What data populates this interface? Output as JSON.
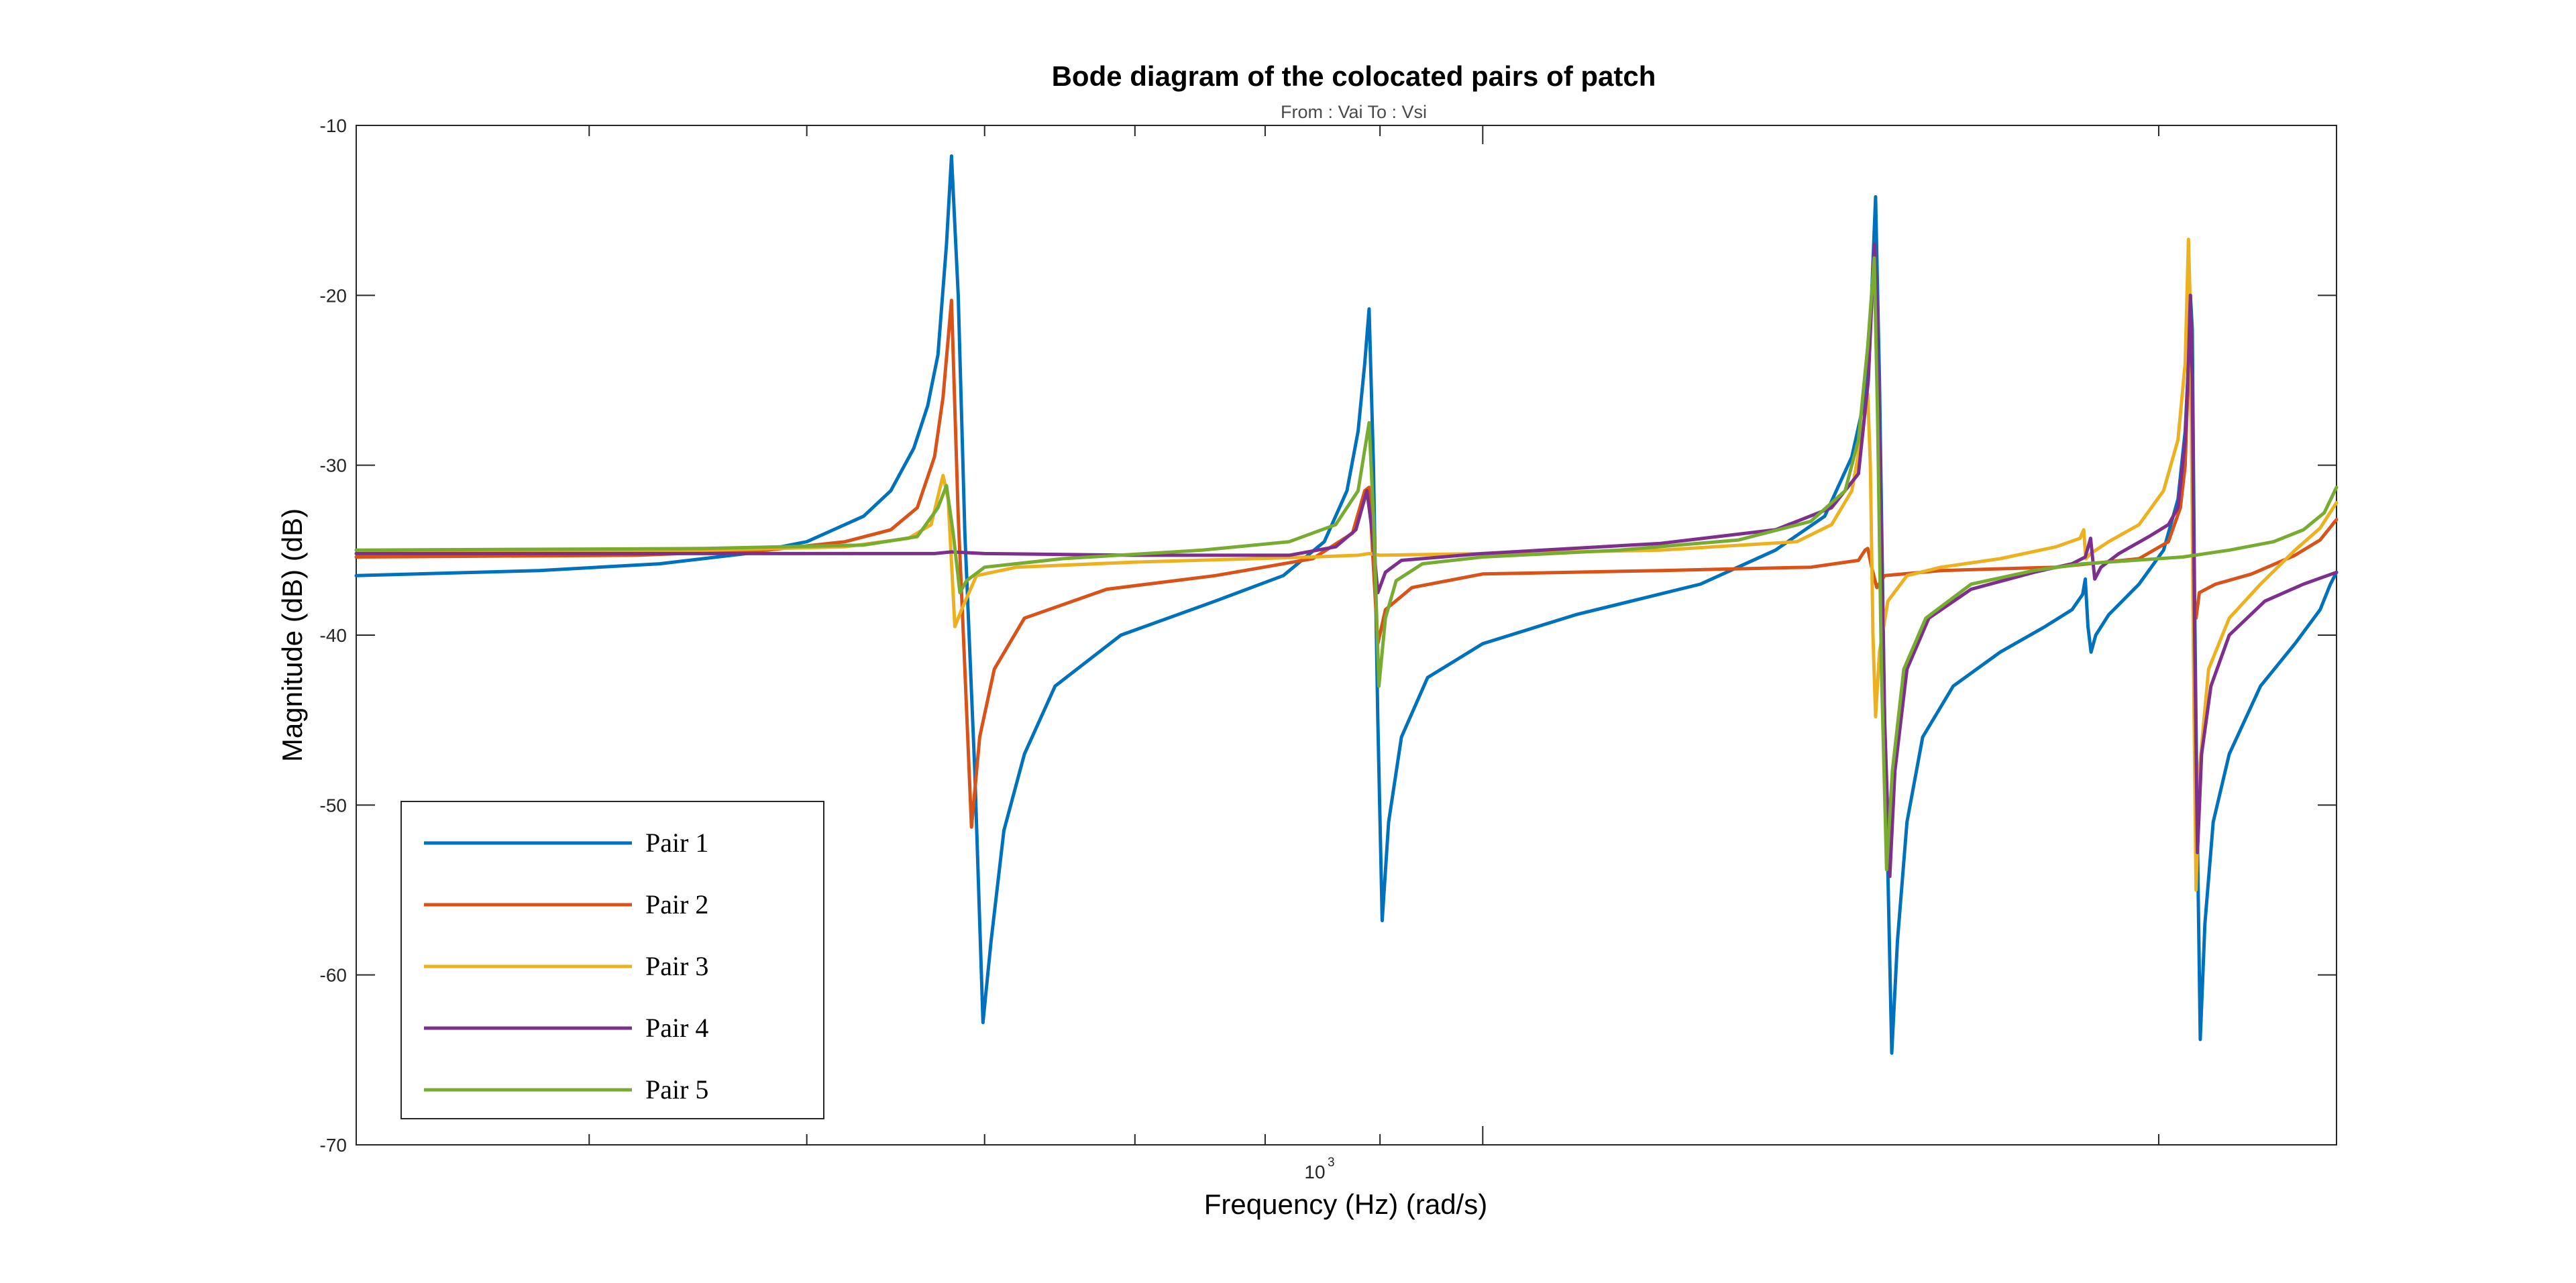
{
  "chart_data": {
    "type": "line",
    "title": "Bode diagram of the colocated pairs of patch",
    "subtitle": "From : Vai To : Vsi",
    "xlabel": "Frequency (Hz)  (rad/s)",
    "ylabel": "Magnitude (dB) (dB)",
    "xscale": "log",
    "xlim": [
      315,
      2400
    ],
    "ylim": [
      -70,
      -10
    ],
    "yticks": [
      -70,
      -60,
      -50,
      -40,
      -30,
      -20,
      -10
    ],
    "xtick_label": {
      "value": 1000,
      "base": "10",
      "exponent": "3"
    },
    "grid": false,
    "legend_position": "bottom-left",
    "series": [
      {
        "name": "Pair 1",
        "color": "#0072BD",
        "points": [
          [
            315,
            -36.5
          ],
          [
            380,
            -36.2
          ],
          [
            430,
            -35.8
          ],
          [
            470,
            -35.2
          ],
          [
            500,
            -34.5
          ],
          [
            530,
            -33.0
          ],
          [
            545,
            -31.5
          ],
          [
            558,
            -29.0
          ],
          [
            566,
            -26.5
          ],
          [
            572,
            -23.5
          ],
          [
            577,
            -17.0
          ],
          [
            580,
            -11.8
          ],
          [
            584,
            -20.0
          ],
          [
            588,
            -34.0
          ],
          [
            594,
            -48.0
          ],
          [
            599,
            -62.8
          ],
          [
            604,
            -58.0
          ],
          [
            612,
            -51.5
          ],
          [
            625,
            -47.0
          ],
          [
            645,
            -43.0
          ],
          [
            690,
            -40.0
          ],
          [
            760,
            -38.0
          ],
          [
            815,
            -36.5
          ],
          [
            850,
            -34.5
          ],
          [
            870,
            -31.5
          ],
          [
            880,
            -28.0
          ],
          [
            886,
            -24.0
          ],
          [
            890,
            -20.8
          ],
          [
            894,
            -30.0
          ],
          [
            898,
            -45.0
          ],
          [
            902,
            -56.8
          ],
          [
            908,
            -51.0
          ],
          [
            920,
            -46.0
          ],
          [
            945,
            -42.5
          ],
          [
            1000,
            -40.5
          ],
          [
            1100,
            -38.8
          ],
          [
            1250,
            -37.0
          ],
          [
            1350,
            -35.0
          ],
          [
            1420,
            -33.0
          ],
          [
            1460,
            -29.5
          ],
          [
            1480,
            -26.0
          ],
          [
            1490,
            -20.0
          ],
          [
            1496,
            -14.2
          ],
          [
            1502,
            -25.0
          ],
          [
            1510,
            -45.0
          ],
          [
            1521,
            -64.6
          ],
          [
            1530,
            -58.0
          ],
          [
            1545,
            -51.0
          ],
          [
            1570,
            -46.0
          ],
          [
            1620,
            -43.0
          ],
          [
            1700,
            -41.0
          ],
          [
            1780,
            -39.5
          ],
          [
            1830,
            -38.5
          ],
          [
            1850,
            -37.6
          ],
          [
            1855,
            -36.7
          ],
          [
            1860,
            -39.5
          ],
          [
            1866,
            -41.0
          ],
          [
            1875,
            -40.0
          ],
          [
            1900,
            -38.8
          ],
          [
            1960,
            -37.0
          ],
          [
            2010,
            -35.0
          ],
          [
            2040,
            -32.0
          ],
          [
            2055,
            -28.0
          ],
          [
            2062,
            -24.0
          ],
          [
            2066,
            -20.0
          ],
          [
            2070,
            -22.0
          ],
          [
            2075,
            -38.0
          ],
          [
            2080,
            -50.0
          ],
          [
            2087,
            -63.8
          ],
          [
            2097,
            -57.0
          ],
          [
            2115,
            -51.0
          ],
          [
            2150,
            -47.0
          ],
          [
            2220,
            -43.0
          ],
          [
            2300,
            -40.5
          ],
          [
            2360,
            -38.5
          ],
          [
            2385,
            -37.0
          ],
          [
            2400,
            -36.3
          ]
        ]
      },
      {
        "name": "Pair 2",
        "color": "#D95319",
        "points": [
          [
            315,
            -35.4
          ],
          [
            420,
            -35.3
          ],
          [
            480,
            -35.0
          ],
          [
            520,
            -34.5
          ],
          [
            545,
            -33.8
          ],
          [
            560,
            -32.5
          ],
          [
            570,
            -29.5
          ],
          [
            575,
            -26.0
          ],
          [
            580,
            -20.3
          ],
          [
            584,
            -33.0
          ],
          [
            588,
            -42.0
          ],
          [
            592,
            -51.3
          ],
          [
            597,
            -46.0
          ],
          [
            606,
            -42.0
          ],
          [
            625,
            -39.0
          ],
          [
            680,
            -37.3
          ],
          [
            760,
            -36.5
          ],
          [
            840,
            -35.5
          ],
          [
            875,
            -34.0
          ],
          [
            886,
            -31.5
          ],
          [
            890,
            -31.3
          ],
          [
            894,
            -36.0
          ],
          [
            898,
            -40.5
          ],
          [
            905,
            -38.5
          ],
          [
            930,
            -37.2
          ],
          [
            1000,
            -36.4
          ],
          [
            1200,
            -36.2
          ],
          [
            1400,
            -36.0
          ],
          [
            1470,
            -35.6
          ],
          [
            1480,
            -35.0
          ],
          [
            1484,
            -34.9
          ],
          [
            1490,
            -36.0
          ],
          [
            1498,
            -37.2
          ],
          [
            1510,
            -36.5
          ],
          [
            1600,
            -36.2
          ],
          [
            1800,
            -36.0
          ],
          [
            1960,
            -35.5
          ],
          [
            2020,
            -34.5
          ],
          [
            2045,
            -32.5
          ],
          [
            2055,
            -30.0
          ],
          [
            2060,
            -26.0
          ],
          [
            2064,
            -20.0
          ],
          [
            2068,
            -27.0
          ],
          [
            2072,
            -38.5
          ],
          [
            2078,
            -39.0
          ],
          [
            2085,
            -37.5
          ],
          [
            2120,
            -37.0
          ],
          [
            2200,
            -36.4
          ],
          [
            2300,
            -35.3
          ],
          [
            2360,
            -34.4
          ],
          [
            2400,
            -33.2
          ]
        ]
      },
      {
        "name": "Pair 3",
        "color": "#EDB120",
        "points": [
          [
            315,
            -35.2
          ],
          [
            420,
            -35.1
          ],
          [
            520,
            -34.8
          ],
          [
            555,
            -34.3
          ],
          [
            568,
            -33.5
          ],
          [
            575,
            -30.6
          ],
          [
            578,
            -32.0
          ],
          [
            582,
            -39.5
          ],
          [
            586,
            -38.5
          ],
          [
            595,
            -36.5
          ],
          [
            620,
            -36.0
          ],
          [
            700,
            -35.7
          ],
          [
            840,
            -35.4
          ],
          [
            880,
            -35.3
          ],
          [
            890,
            -35.2
          ],
          [
            900,
            -35.3
          ],
          [
            1000,
            -35.2
          ],
          [
            1200,
            -35.0
          ],
          [
            1380,
            -34.5
          ],
          [
            1430,
            -33.5
          ],
          [
            1460,
            -31.5
          ],
          [
            1476,
            -28.0
          ],
          [
            1484,
            -25.8
          ],
          [
            1488,
            -30.0
          ],
          [
            1492,
            -40.0
          ],
          [
            1496,
            -44.8
          ],
          [
            1502,
            -41.0
          ],
          [
            1515,
            -38.0
          ],
          [
            1545,
            -36.5
          ],
          [
            1600,
            -36.0
          ],
          [
            1700,
            -35.5
          ],
          [
            1800,
            -34.8
          ],
          [
            1845,
            -34.3
          ],
          [
            1852,
            -33.8
          ],
          [
            1856,
            -35.5
          ],
          [
            1865,
            -35.2
          ],
          [
            1900,
            -34.5
          ],
          [
            1960,
            -33.5
          ],
          [
            2010,
            -31.5
          ],
          [
            2040,
            -28.5
          ],
          [
            2055,
            -24.0
          ],
          [
            2062,
            -16.7
          ],
          [
            2067,
            -22.0
          ],
          [
            2072,
            -40.0
          ],
          [
            2078,
            -55.0
          ],
          [
            2085,
            -48.0
          ],
          [
            2105,
            -42.0
          ],
          [
            2150,
            -39.0
          ],
          [
            2220,
            -37.0
          ],
          [
            2300,
            -35.0
          ],
          [
            2360,
            -33.7
          ],
          [
            2400,
            -32.2
          ]
        ]
      },
      {
        "name": "Pair 4",
        "color": "#7E2F8E",
        "points": [
          [
            315,
            -35.2
          ],
          [
            500,
            -35.2
          ],
          [
            570,
            -35.2
          ],
          [
            580,
            -35.1
          ],
          [
            600,
            -35.2
          ],
          [
            700,
            -35.3
          ],
          [
            820,
            -35.3
          ],
          [
            860,
            -34.8
          ],
          [
            878,
            -33.8
          ],
          [
            888,
            -31.5
          ],
          [
            893,
            -34.0
          ],
          [
            898,
            -37.5
          ],
          [
            905,
            -36.3
          ],
          [
            920,
            -35.6
          ],
          [
            1000,
            -35.2
          ],
          [
            1200,
            -34.6
          ],
          [
            1350,
            -33.8
          ],
          [
            1430,
            -32.5
          ],
          [
            1470,
            -30.5
          ],
          [
            1485,
            -25.0
          ],
          [
            1494,
            -17.0
          ],
          [
            1498,
            -20.0
          ],
          [
            1503,
            -30.0
          ],
          [
            1510,
            -45.0
          ],
          [
            1518,
            -54.2
          ],
          [
            1526,
            -48.0
          ],
          [
            1545,
            -42.0
          ],
          [
            1580,
            -39.0
          ],
          [
            1650,
            -37.3
          ],
          [
            1760,
            -36.3
          ],
          [
            1830,
            -35.8
          ],
          [
            1855,
            -35.4
          ],
          [
            1865,
            -34.3
          ],
          [
            1873,
            -36.7
          ],
          [
            1885,
            -36.0
          ],
          [
            1920,
            -35.2
          ],
          [
            1980,
            -34.2
          ],
          [
            2020,
            -33.5
          ],
          [
            2040,
            -32.5
          ],
          [
            2055,
            -28.5
          ],
          [
            2062,
            -24.0
          ],
          [
            2066,
            -20.0
          ],
          [
            2070,
            -25.0
          ],
          [
            2075,
            -40.0
          ],
          [
            2081,
            -52.8
          ],
          [
            2090,
            -47.0
          ],
          [
            2110,
            -43.0
          ],
          [
            2150,
            -40.0
          ],
          [
            2230,
            -38.0
          ],
          [
            2320,
            -37.0
          ],
          [
            2400,
            -36.3
          ]
        ]
      },
      {
        "name": "Pair 5",
        "color": "#77AC30",
        "points": [
          [
            315,
            -35.0
          ],
          [
            450,
            -34.9
          ],
          [
            530,
            -34.7
          ],
          [
            560,
            -34.2
          ],
          [
            572,
            -32.5
          ],
          [
            577,
            -31.2
          ],
          [
            581,
            -34.0
          ],
          [
            585,
            -37.5
          ],
          [
            589,
            -36.8
          ],
          [
            600,
            -36.0
          ],
          [
            650,
            -35.5
          ],
          [
            750,
            -35.0
          ],
          [
            820,
            -34.5
          ],
          [
            860,
            -33.5
          ],
          [
            880,
            -31.5
          ],
          [
            890,
            -27.5
          ],
          [
            894,
            -33.0
          ],
          [
            899,
            -43.0
          ],
          [
            905,
            -39.0
          ],
          [
            915,
            -36.8
          ],
          [
            940,
            -35.8
          ],
          [
            1000,
            -35.4
          ],
          [
            1150,
            -35.0
          ],
          [
            1300,
            -34.4
          ],
          [
            1400,
            -33.3
          ],
          [
            1450,
            -31.5
          ],
          [
            1470,
            -28.5
          ],
          [
            1484,
            -23.0
          ],
          [
            1494,
            -17.8
          ],
          [
            1499,
            -27.0
          ],
          [
            1505,
            -42.0
          ],
          [
            1513,
            -53.8
          ],
          [
            1522,
            -48.0
          ],
          [
            1540,
            -42.0
          ],
          [
            1575,
            -39.0
          ],
          [
            1650,
            -37.0
          ],
          [
            1760,
            -36.2
          ],
          [
            1850,
            -35.8
          ],
          [
            1950,
            -35.6
          ],
          [
            2050,
            -35.4
          ],
          [
            2150,
            -35.0
          ],
          [
            2250,
            -34.5
          ],
          [
            2320,
            -33.8
          ],
          [
            2370,
            -32.8
          ],
          [
            2400,
            -31.3
          ]
        ]
      }
    ]
  }
}
